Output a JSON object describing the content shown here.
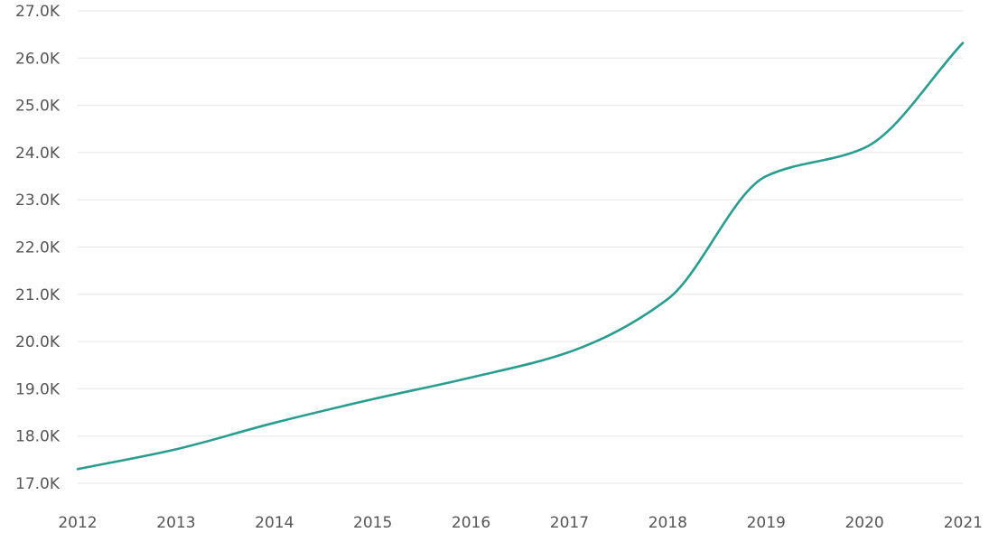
{
  "chart_data": {
    "type": "line",
    "title": "",
    "xlabel": "",
    "ylabel": "",
    "x": [
      2012,
      2013,
      2014,
      2015,
      2016,
      2017,
      2018,
      2019,
      2020,
      2021
    ],
    "series": [
      {
        "values": [
          17300,
          17720,
          18280,
          18780,
          19240,
          19780,
          20900,
          23500,
          24100,
          26320
        ],
        "color": "#2a9d8f"
      }
    ],
    "x_tick_labels": [
      "2012",
      "2013",
      "2014",
      "2015",
      "2016",
      "2017",
      "2018",
      "2019",
      "2020",
      "2021"
    ],
    "y_ticks": [
      17000,
      18000,
      19000,
      20000,
      21000,
      22000,
      23000,
      24000,
      25000,
      26000,
      27000
    ],
    "y_tick_labels": [
      "17.0K",
      "18.0K",
      "19.0K",
      "20.0K",
      "21.0K",
      "22.0K",
      "23.0K",
      "24.0K",
      "25.0K",
      "26.0K",
      "27.0K"
    ],
    "ylim": [
      17000,
      27000
    ],
    "xlim": [
      2012,
      2021
    ],
    "grid": true,
    "legend": "none"
  }
}
